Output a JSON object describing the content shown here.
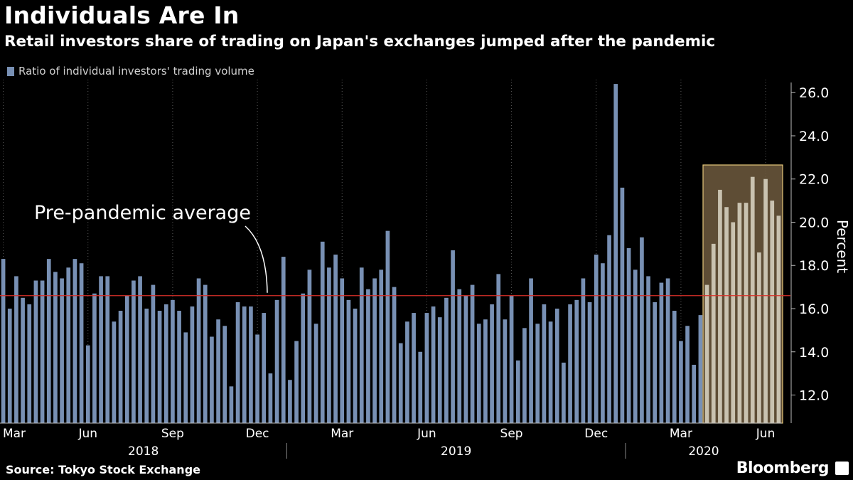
{
  "header": {
    "title": "Individuals Are In",
    "subtitle": "Retail investors share of trading on Japan's exchanges jumped after the pandemic"
  },
  "footer": {
    "source": "Source: Tokyo Stock Exchange",
    "brand": "Bloomberg"
  },
  "colors": {
    "background": "#000000",
    "bar": "#7890b4",
    "highlight_bar": "#c9c2b0",
    "highlight_box": "#6e5a3e",
    "highlight_border": "#e6c87a",
    "average_line": "#d8312a",
    "grid": "#5a5a5a"
  },
  "chart_data": {
    "type": "bar",
    "frequency": "weekly",
    "series": [
      {
        "name": "Ratio of individual investors' trading volume",
        "start": "2018-03-02",
        "values": [
          18.3,
          16.0,
          17.5,
          16.5,
          16.2,
          17.3,
          17.3,
          18.3,
          17.7,
          17.4,
          17.9,
          18.3,
          18.1,
          14.3,
          16.7,
          17.5,
          17.5,
          15.4,
          15.9,
          16.6,
          17.3,
          17.5,
          16.0,
          17.1,
          15.9,
          16.2,
          16.4,
          15.9,
          14.9,
          16.1,
          17.4,
          17.1,
          14.7,
          15.5,
          15.2,
          12.4,
          16.3,
          16.1,
          16.1,
          14.8,
          15.8,
          13.0,
          16.4,
          18.4,
          12.7,
          14.5,
          16.7,
          17.8,
          15.3,
          19.1,
          17.9,
          18.5,
          17.4,
          16.4,
          16.0,
          17.9,
          16.9,
          17.4,
          17.8,
          19.6,
          17.0,
          14.4,
          15.4,
          15.8,
          14.0,
          15.8,
          16.1,
          15.6,
          16.5,
          18.7,
          16.9,
          16.6,
          17.1,
          15.3,
          15.5,
          16.2,
          17.6,
          15.5,
          16.6,
          13.6,
          15.1,
          17.4,
          15.3,
          16.2,
          15.4,
          16.0,
          13.5,
          16.2,
          16.4,
          17.4,
          16.3,
          18.5,
          18.1,
          19.4,
          26.4,
          21.6,
          18.8,
          17.8,
          19.3,
          17.5,
          16.3,
          17.2,
          17.4,
          15.9,
          14.5,
          15.2,
          13.4,
          15.7,
          17.1,
          19.0,
          21.5,
          20.7,
          20.0,
          20.9,
          20.9,
          22.1,
          18.6,
          22.0,
          21.0,
          20.3
        ]
      }
    ],
    "highlight": {
      "from_index": 108,
      "to_index": 119
    },
    "reference_line": {
      "value": 16.6,
      "label": "Pre-pandemic average"
    },
    "x_tick_labels": [
      {
        "label": "Mar",
        "index": 0
      },
      {
        "label": "Jun",
        "index": 13
      },
      {
        "label": "Sep",
        "index": 26
      },
      {
        "label": "Dec",
        "index": 39
      },
      {
        "label": "Mar",
        "index": 52
      },
      {
        "label": "Jun",
        "index": 65
      },
      {
        "label": "Sep",
        "index": 78
      },
      {
        "label": "Dec",
        "index": 91
      },
      {
        "label": "Mar",
        "index": 104
      },
      {
        "label": "Jun",
        "index": 117
      }
    ],
    "year_labels": [
      {
        "label": "2018",
        "from": 0,
        "to": 43
      },
      {
        "label": "2019",
        "from": 44,
        "to": 95
      },
      {
        "label": "2020",
        "from": 96,
        "to": 119
      }
    ],
    "y_ticks": [
      "12.0",
      "14.0",
      "16.0",
      "18.0",
      "20.0",
      "22.0",
      "24.0",
      "26.0"
    ],
    "ylabel": "Percent",
    "ylim": [
      10.7,
      26.6
    ],
    "y_axis_position": "right",
    "grid": "vertical"
  }
}
